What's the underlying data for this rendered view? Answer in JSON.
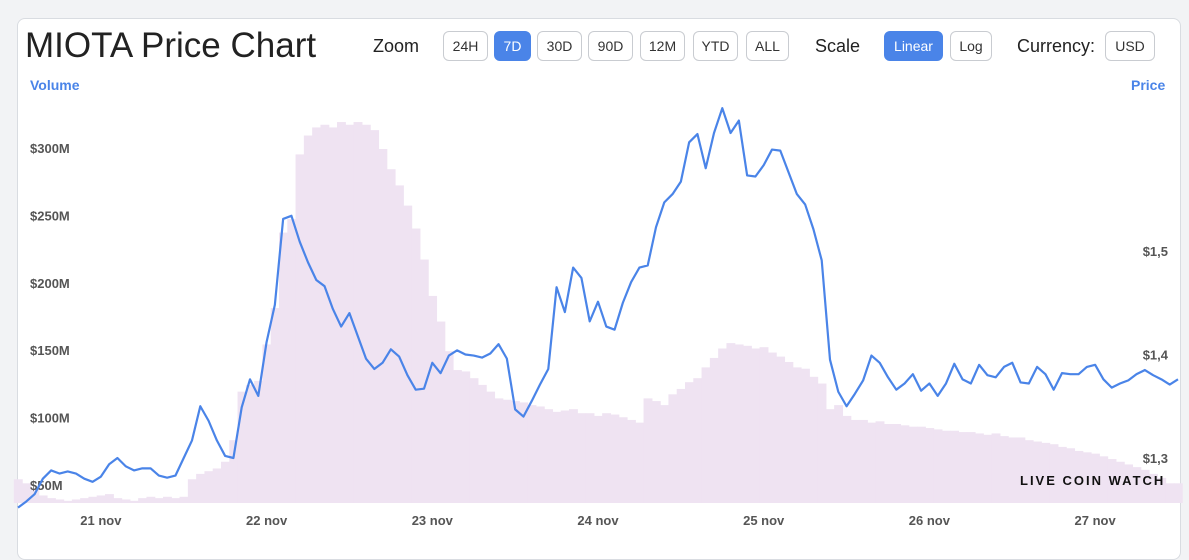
{
  "header": {
    "title": "MIOTA Price Chart",
    "zoom_label": "Zoom",
    "zoom_options": [
      "24H",
      "7D",
      "30D",
      "90D",
      "12M",
      "YTD",
      "ALL"
    ],
    "zoom_selected": "7D",
    "scale_label": "Scale",
    "scale_options": [
      "Linear",
      "Log"
    ],
    "scale_selected": "Linear",
    "currency_label": "Currency:",
    "currency_value": "USD"
  },
  "watermark": "LIVE COIN WATCH",
  "colors": {
    "accent": "#4a84e8",
    "price_line": "#4a84e8",
    "volume_fill": "#efe3f2"
  },
  "chart_data": {
    "type": "line",
    "title": "MIOTA Price Chart",
    "x": [
      0,
      0.05,
      0.1,
      0.15,
      0.2,
      0.25,
      0.3,
      0.35,
      0.4,
      0.45,
      0.5,
      0.55,
      0.6,
      0.65,
      0.7,
      0.75,
      0.8,
      0.85,
      0.9,
      0.95,
      1.0,
      1.05,
      1.1,
      1.15,
      1.2,
      1.25,
      1.3,
      1.35,
      1.4,
      1.45,
      1.5,
      1.55,
      1.6,
      1.65,
      1.7,
      1.75,
      1.8,
      1.85,
      1.9,
      1.95,
      2.0,
      2.05,
      2.1,
      2.15,
      2.2,
      2.25,
      2.3,
      2.35,
      2.4,
      2.45,
      2.5,
      2.55,
      2.6,
      2.65,
      2.7,
      2.75,
      2.8,
      2.85,
      2.9,
      2.95,
      3.0,
      3.05,
      3.1,
      3.15,
      3.2,
      3.25,
      3.3,
      3.35,
      3.4,
      3.45,
      3.5,
      3.55,
      3.6,
      3.65,
      3.7,
      3.75,
      3.8,
      3.85,
      3.9,
      3.95,
      4.0,
      4.05,
      4.1,
      4.15,
      4.2,
      4.25,
      4.3,
      4.35,
      4.4,
      4.45,
      4.5,
      4.55,
      4.6,
      4.65,
      4.7,
      4.75,
      4.8,
      4.85,
      4.9,
      4.95,
      5.0,
      5.05,
      5.1,
      5.15,
      5.2,
      5.25,
      5.3,
      5.35,
      5.4,
      5.45,
      5.5,
      5.55,
      5.6,
      5.65,
      5.7,
      5.75,
      5.8,
      5.85,
      5.9,
      5.95,
      6.0,
      6.05,
      6.1,
      6.15,
      6.2,
      6.25,
      6.3,
      6.35,
      6.4,
      6.45,
      6.5,
      6.55,
      6.6,
      6.65,
      6.7,
      6.75,
      6.8,
      6.85,
      6.9,
      6.95,
      7.0
    ],
    "x_tick_labels": [
      "21 nov",
      "22 nov",
      "23 nov",
      "24 nov",
      "25 nov",
      "26 nov",
      "27 nov"
    ],
    "x_tick_positions": [
      0.5,
      1.5,
      2.5,
      3.5,
      4.5,
      5.5,
      6.5
    ],
    "xlim": [
      0,
      7
    ],
    "left_axis": {
      "label": "Volume",
      "ticks": [
        "$50M",
        "$100M",
        "$150M",
        "$200M",
        "$250M",
        "$300M"
      ],
      "tick_values": [
        50,
        100,
        150,
        200,
        250,
        300
      ],
      "range": [
        38,
        320
      ],
      "unit": "$M"
    },
    "right_axis": {
      "label": "Price",
      "ticks": [
        "$1,3",
        "$1,4",
        "$1,5"
      ],
      "tick_values": [
        1.3,
        1.4,
        1.5
      ],
      "range": [
        1.25,
        1.66
      ],
      "unit": "$"
    },
    "series": [
      {
        "name": "Price",
        "kind": "line",
        "axis": "right",
        "values": [
          1.252,
          1.258,
          1.265,
          1.28,
          1.288,
          1.285,
          1.287,
          1.285,
          1.28,
          1.277,
          1.282,
          1.294,
          1.3,
          1.292,
          1.288,
          1.29,
          1.29,
          1.283,
          1.281,
          1.283,
          1.3,
          1.317,
          1.35,
          1.336,
          1.317,
          1.302,
          1.3,
          1.349,
          1.376,
          1.36,
          1.412,
          1.448,
          1.531,
          1.534,
          1.509,
          1.489,
          1.472,
          1.466,
          1.444,
          1.427,
          1.44,
          1.418,
          1.396,
          1.386,
          1.392,
          1.405,
          1.398,
          1.38,
          1.366,
          1.367,
          1.392,
          1.382,
          1.399,
          1.404,
          1.4,
          1.399,
          1.397,
          1.401,
          1.41,
          1.396,
          1.347,
          1.34,
          1.355,
          1.371,
          1.386,
          1.465,
          1.441,
          1.484,
          1.474,
          1.432,
          1.451,
          1.427,
          1.424,
          1.45,
          1.47,
          1.484,
          1.486,
          1.523,
          1.547,
          1.555,
          1.567,
          1.605,
          1.613,
          1.58,
          1.614,
          1.638,
          1.614,
          1.626,
          1.573,
          1.572,
          1.583,
          1.598,
          1.597,
          1.576,
          1.555,
          1.545,
          1.521,
          1.491,
          1.395,
          1.364,
          1.35,
          1.362,
          1.375,
          1.399,
          1.392,
          1.378,
          1.366,
          1.372,
          1.381,
          1.365,
          1.372,
          1.36,
          1.372,
          1.391,
          1.376,
          1.372,
          1.39,
          1.38,
          1.378,
          1.388,
          1.392,
          1.373,
          1.372,
          1.388,
          1.381,
          1.366,
          1.382,
          1.381,
          1.381,
          1.388,
          1.39,
          1.376,
          1.368,
          1.372,
          1.375,
          1.381,
          1.385,
          1.38,
          1.376,
          1.371,
          1.376
        ]
      },
      {
        "name": "Volume",
        "kind": "area",
        "axis": "left",
        "values": [
          55,
          52,
          48,
          43,
          41,
          40,
          39,
          40,
          41,
          42,
          43,
          44,
          41,
          40,
          39,
          41,
          42,
          41,
          42,
          41,
          42,
          55,
          59,
          61,
          63,
          68,
          84,
          120,
          125,
          128,
          155,
          182,
          238,
          248,
          296,
          310,
          316,
          318,
          316,
          320,
          318,
          320,
          318,
          314,
          300,
          285,
          273,
          258,
          241,
          218,
          191,
          172,
          150,
          136,
          135,
          130,
          125,
          120,
          115,
          114,
          113,
          112,
          110,
          109,
          107,
          105,
          106,
          107,
          104,
          104,
          102,
          104,
          103,
          101,
          99,
          97,
          115,
          113,
          110,
          118,
          122,
          127,
          130,
          138,
          145,
          152,
          156,
          155,
          154,
          152,
          153,
          149,
          146,
          142,
          138,
          137,
          131,
          126,
          107,
          110,
          102,
          99,
          99,
          97,
          98,
          96,
          96,
          95,
          94,
          94,
          93,
          92,
          91,
          91,
          90,
          90,
          89,
          88,
          89,
          87,
          86,
          86,
          84,
          83,
          82,
          81,
          79,
          78,
          76,
          75,
          74,
          72,
          70,
          68,
          66,
          64,
          62,
          59,
          56,
          52,
          52
        ]
      }
    ]
  }
}
